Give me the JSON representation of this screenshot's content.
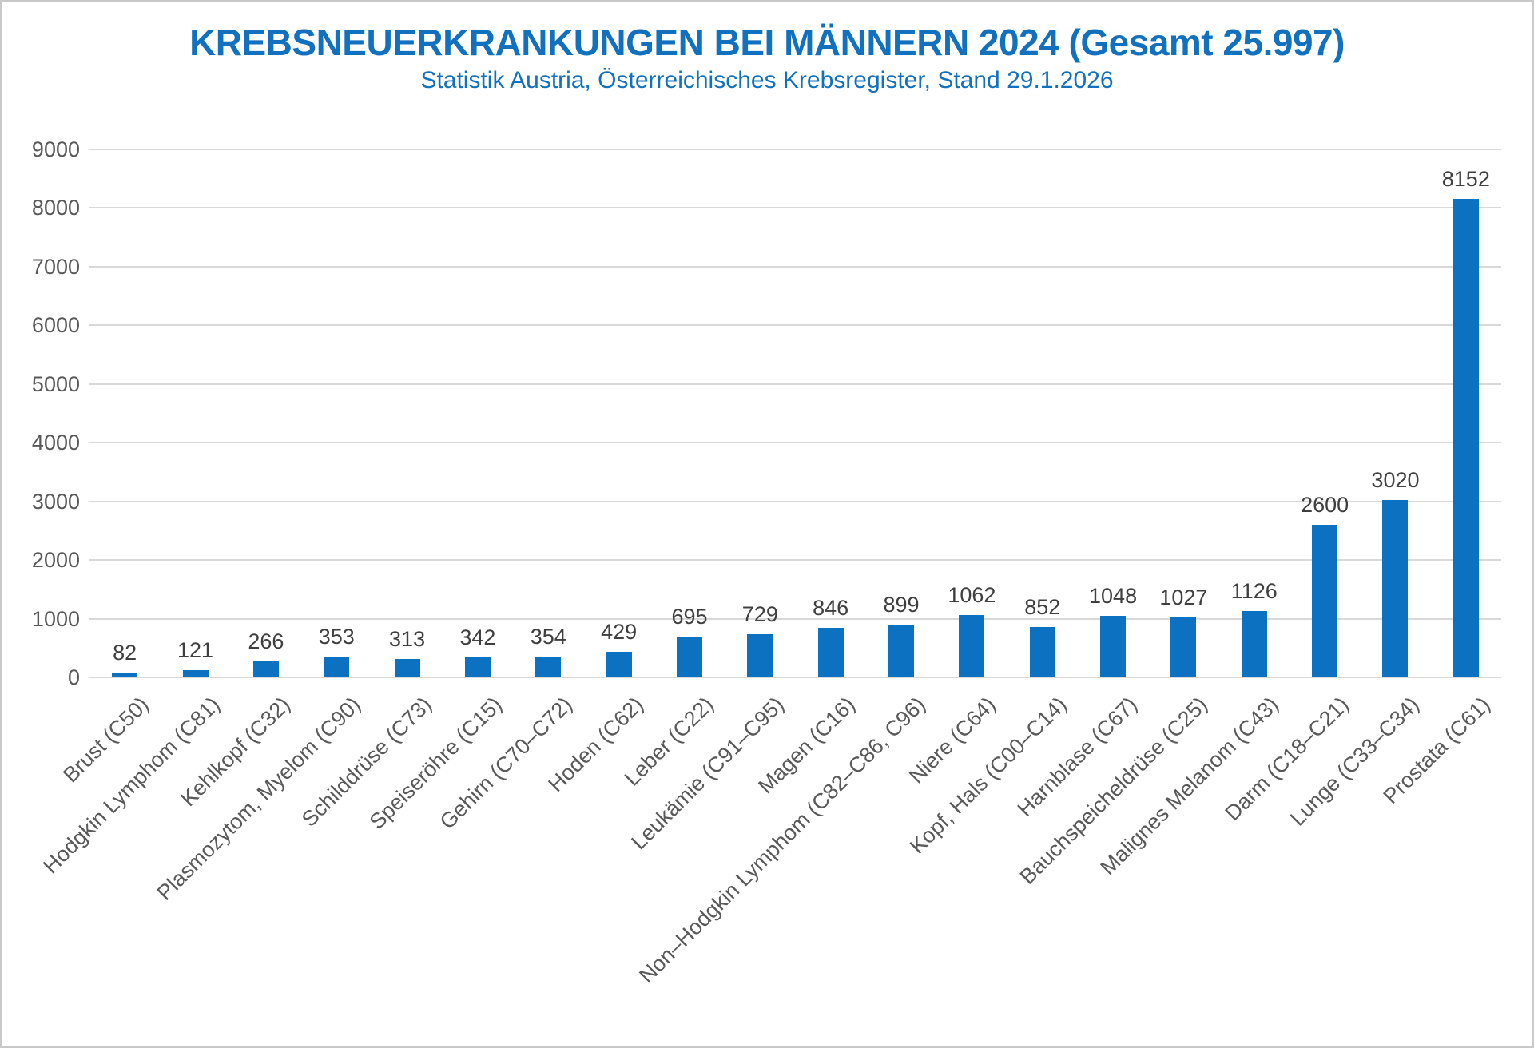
{
  "chart_data": {
    "type": "bar",
    "title": "KREBSNEUERKRANKUNGEN BEI MÄNNERN 2024 (Gesamt 25.997)",
    "subtitle": "Statistik Austria, Österreichisches Krebsregister, Stand 29.1.2026",
    "total_label": "25.997",
    "categories": [
      "Brust (C50)",
      "Hodgkin Lymphom (C81)",
      "Kehlkopf (C32)",
      "Plasmozytom, Myelom (C90)",
      "Schilddrüse (C73)",
      "Speiseröhre (C15)",
      "Gehirn (C70–C72)",
      "Hoden (C62)",
      "Leber (C22)",
      "Leukämie (C91–C95)",
      "Magen (C16)",
      "Non–Hodgkin Lymphom (C82–C86, C96)",
      "Niere (C64)",
      "Kopf, Hals (C00–C14)",
      "Harnblase (C67)",
      "Bauchspeicheldrüse (C25)",
      "Malignes Melanom (C43)",
      "Darm (C18–C21)",
      "Lunge (C33–C34)",
      "Prostata (C61)"
    ],
    "values": [
      82,
      121,
      266,
      353,
      313,
      342,
      354,
      429,
      695,
      729,
      846,
      899,
      1062,
      852,
      1048,
      1027,
      1126,
      2600,
      3020,
      8152
    ],
    "xlabel": "",
    "ylabel": "",
    "ylim": [
      0,
      9000
    ],
    "ytick_step": 1000,
    "yticks": [
      0,
      1000,
      2000,
      3000,
      4000,
      5000,
      6000,
      7000,
      8000,
      9000
    ],
    "grid": "horizontal",
    "legend": "none",
    "value_labels": "above-bars",
    "category_label_rotation_deg": 45,
    "colors": {
      "bar": "#0c71c0",
      "title": "#1171be",
      "subtitle": "#1171be",
      "value_label": "#3f3f3f",
      "tick_label": "#595959",
      "gridline": "#d9d9d9",
      "background": "#ffffff",
      "frame_border": "#c9c9c9"
    }
  }
}
